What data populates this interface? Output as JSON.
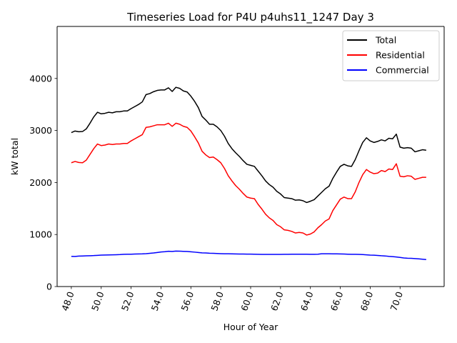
{
  "chart_data": {
    "type": "line",
    "title": "Timeseries Load for P4U p4uhs11_1247  Day 3",
    "xlabel": "Hour of Year",
    "ylabel": "kW total",
    "xlim": [
      47.05,
      72.95
    ],
    "ylim": [
      0,
      5000
    ],
    "xticks": [
      48,
      50,
      52,
      54,
      56,
      58,
      60,
      62,
      64,
      66,
      68,
      70
    ],
    "xtick_labels": [
      "48.0",
      "50.0",
      "52.0",
      "54.0",
      "56.0",
      "58.0",
      "60.0",
      "62.0",
      "64.0",
      "66.0",
      "68.0",
      "70.0"
    ],
    "yticks": [
      0,
      1000,
      2000,
      3000,
      4000
    ],
    "ytick_labels": [
      "0",
      "1000",
      "2000",
      "3000",
      "4000"
    ],
    "legend_position": "top-right",
    "x_start": 48,
    "x_step": 0.25,
    "series": [
      {
        "name": "Total",
        "color": "#000000",
        "values": [
          2960,
          2990,
          2975,
          2980,
          3030,
          3140,
          3260,
          3350,
          3320,
          3330,
          3350,
          3340,
          3360,
          3360,
          3375,
          3375,
          3420,
          3460,
          3500,
          3550,
          3690,
          3710,
          3745,
          3770,
          3780,
          3780,
          3820,
          3750,
          3830,
          3810,
          3760,
          3740,
          3660,
          3560,
          3440,
          3270,
          3200,
          3120,
          3120,
          3070,
          3000,
          2890,
          2750,
          2650,
          2570,
          2500,
          2420,
          2350,
          2330,
          2310,
          2220,
          2130,
          2030,
          1960,
          1910,
          1830,
          1780,
          1710,
          1700,
          1690,
          1660,
          1665,
          1650,
          1615,
          1640,
          1670,
          1740,
          1810,
          1880,
          1930,
          2080,
          2200,
          2310,
          2350,
          2320,
          2310,
          2440,
          2610,
          2770,
          2860,
          2800,
          2770,
          2790,
          2820,
          2800,
          2850,
          2840,
          2930,
          2680,
          2660,
          2670,
          2660,
          2590,
          2610,
          2630,
          2620
        ]
      },
      {
        "name": "Residential",
        "color": "#ff0000",
        "values": [
          2380,
          2405,
          2385,
          2380,
          2430,
          2540,
          2650,
          2740,
          2710,
          2720,
          2740,
          2730,
          2740,
          2740,
          2750,
          2750,
          2800,
          2840,
          2880,
          2920,
          3060,
          3070,
          3090,
          3110,
          3110,
          3110,
          3140,
          3080,
          3140,
          3120,
          3080,
          3060,
          2990,
          2880,
          2760,
          2600,
          2530,
          2480,
          2490,
          2440,
          2380,
          2270,
          2130,
          2030,
          1940,
          1870,
          1790,
          1720,
          1700,
          1690,
          1580,
          1490,
          1390,
          1320,
          1270,
          1190,
          1150,
          1090,
          1080,
          1060,
          1030,
          1040,
          1030,
          990,
          1010,
          1050,
          1130,
          1190,
          1260,
          1300,
          1460,
          1570,
          1680,
          1720,
          1690,
          1690,
          1820,
          2000,
          2150,
          2250,
          2200,
          2170,
          2180,
          2230,
          2210,
          2260,
          2250,
          2360,
          2120,
          2110,
          2130,
          2120,
          2060,
          2080,
          2100,
          2100
        ]
      },
      {
        "name": "Commercial",
        "color": "#0000ff",
        "values": [
          580,
          578,
          585,
          587,
          590,
          592,
          595,
          600,
          605,
          606,
          607,
          609,
          612,
          615,
          620,
          622,
          622,
          625,
          627,
          628,
          632,
          638,
          645,
          655,
          665,
          670,
          678,
          675,
          682,
          680,
          677,
          674,
          668,
          662,
          655,
          648,
          645,
          640,
          638,
          635,
          632,
          630,
          630,
          628,
          626,
          625,
          625,
          624,
          623,
          622,
          620,
          618,
          618,
          619,
          619,
          619,
          619,
          620,
          620,
          621,
          621,
          622,
          621,
          621,
          620,
          620,
          621,
          630,
          630,
          630,
          629,
          628,
          626,
          625,
          622,
          620,
          620,
          618,
          615,
          610,
          605,
          602,
          598,
          592,
          588,
          580,
          575,
          568,
          560,
          550,
          545,
          542,
          538,
          532,
          525,
          518
        ]
      }
    ]
  }
}
